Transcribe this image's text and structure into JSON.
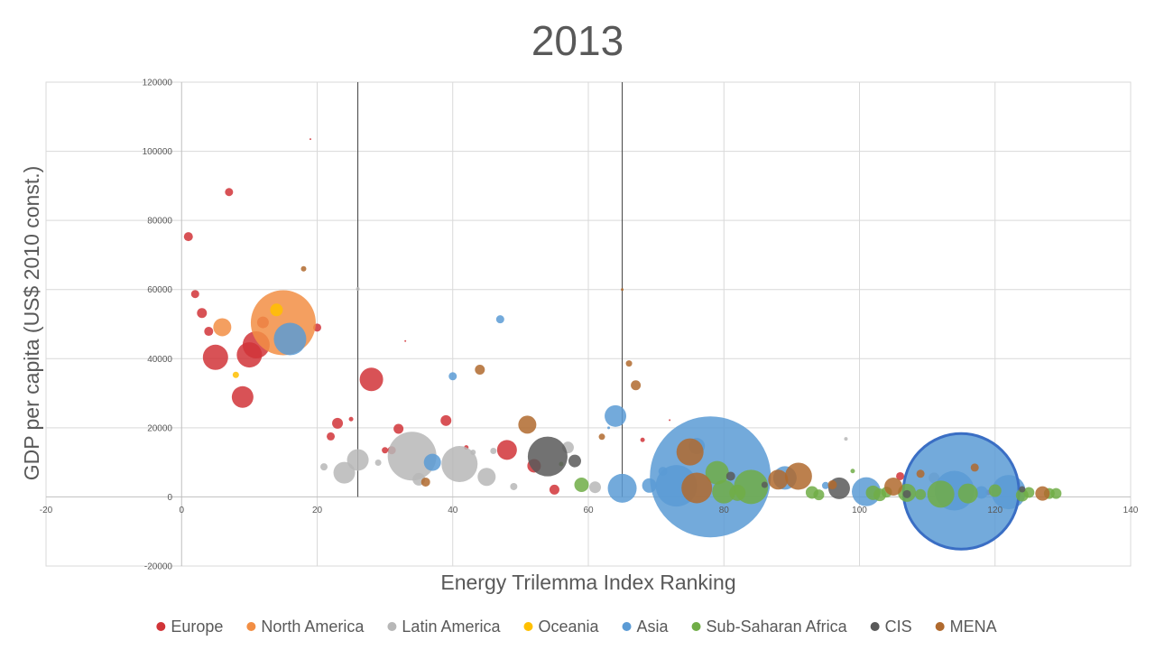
{
  "chart_data": {
    "type": "scatter",
    "bubble": true,
    "title": "2013",
    "xlabel": "Energy Trilemma Index Ranking",
    "ylabel": "GDP per capita (US$ 2010 const.)",
    "xlim": [
      -20,
      140
    ],
    "ylim": [
      -20000,
      120000
    ],
    "x_ticks": [
      "-20",
      "0",
      "20",
      "40",
      "60",
      "80",
      "100",
      "120",
      "140"
    ],
    "y_ticks": [
      "-20000",
      "0",
      "20000",
      "40000",
      "60000",
      "80000",
      "100000",
      "120000"
    ],
    "grid": true,
    "legend_position": "bottom",
    "reference_lines_x": [
      26,
      65
    ],
    "series": [
      {
        "name": "Europe",
        "color": "#d13438",
        "points": [
          {
            "x": 1,
            "y": 75300,
            "r": 5
          },
          {
            "x": 2,
            "y": 58700,
            "r": 4.5
          },
          {
            "x": 3,
            "y": 53200,
            "r": 5.5
          },
          {
            "x": 4,
            "y": 47900,
            "r": 5
          },
          {
            "x": 5,
            "y": 40400,
            "r": 14
          },
          {
            "x": 7,
            "y": 88200,
            "r": 4.5
          },
          {
            "x": 9,
            "y": 28900,
            "r": 12
          },
          {
            "x": 10,
            "y": 41100,
            "r": 14
          },
          {
            "x": 11,
            "y": 44000,
            "r": 15
          },
          {
            "x": 12,
            "y": 50500,
            "r": 6.5
          },
          {
            "x": 19,
            "y": 103500,
            "r": 1
          },
          {
            "x": 20,
            "y": 49000,
            "r": 4.5
          },
          {
            "x": 22,
            "y": 17500,
            "r": 4.5
          },
          {
            "x": 23,
            "y": 21300,
            "r": 6
          },
          {
            "x": 25,
            "y": 22500,
            "r": 2.5
          },
          {
            "x": 28,
            "y": 34000,
            "r": 13
          },
          {
            "x": 30,
            "y": 13500,
            "r": 3.5
          },
          {
            "x": 31,
            "y": 13500,
            "r": 4.5
          },
          {
            "x": 32,
            "y": 19700,
            "r": 5.5
          },
          {
            "x": 33,
            "y": 45100,
            "r": 1
          },
          {
            "x": 39,
            "y": 22100,
            "r": 6
          },
          {
            "x": 42,
            "y": 14300,
            "r": 2.5
          },
          {
            "x": 48,
            "y": 13600,
            "r": 11
          },
          {
            "x": 52,
            "y": 9000,
            "r": 7.5
          },
          {
            "x": 55,
            "y": 2100,
            "r": 5.5
          },
          {
            "x": 72,
            "y": 22200,
            "r": 1
          },
          {
            "x": 68,
            "y": 16500,
            "r": 2.5
          },
          {
            "x": 106,
            "y": 6000,
            "r": 4.5
          },
          {
            "x": 119,
            "y": 1300,
            "r": 3
          }
        ]
      },
      {
        "name": "North America",
        "color": "#f28e44",
        "points": [
          {
            "x": 15,
            "y": 50400,
            "r": 36
          },
          {
            "x": 6,
            "y": 49100,
            "r": 10
          }
        ]
      },
      {
        "name": "Latin America",
        "color": "#b7b7b7",
        "points": [
          {
            "x": 21,
            "y": 8700,
            "r": 4
          },
          {
            "x": 24,
            "y": 7000,
            "r": 12
          },
          {
            "x": 26,
            "y": 60200,
            "r": 2
          },
          {
            "x": 26,
            "y": 10700,
            "r": 12
          },
          {
            "x": 29,
            "y": 9900,
            "r": 3.5
          },
          {
            "x": 34,
            "y": 11800,
            "r": 27
          },
          {
            "x": 35,
            "y": 5100,
            "r": 7
          },
          {
            "x": 41,
            "y": 9500,
            "r": 20
          },
          {
            "x": 43,
            "y": 12900,
            "r": 3
          },
          {
            "x": 45,
            "y": 5800,
            "r": 10
          },
          {
            "x": 46,
            "y": 13300,
            "r": 3.5
          },
          {
            "x": 49,
            "y": 3000,
            "r": 4
          },
          {
            "x": 57,
            "y": 14300,
            "r": 6.5
          },
          {
            "x": 61,
            "y": 2800,
            "r": 6.5
          },
          {
            "x": 98,
            "y": 16800,
            "r": 2
          },
          {
            "x": 111,
            "y": 5500,
            "r": 6
          }
        ]
      },
      {
        "name": "Oceania",
        "color": "#ffc000",
        "points": [
          {
            "x": 8,
            "y": 35300,
            "r": 3.5
          },
          {
            "x": 14,
            "y": 54100,
            "r": 7
          }
        ]
      },
      {
        "name": "Asia",
        "color": "#5b9bd5",
        "points": [
          {
            "x": 16,
            "y": 45700,
            "r": 18
          },
          {
            "x": 37,
            "y": 10000,
            "r": 9.5
          },
          {
            "x": 40,
            "y": 34900,
            "r": 4.5
          },
          {
            "x": 47,
            "y": 51400,
            "r": 4.5
          },
          {
            "x": 64,
            "y": 23400,
            "r": 12
          },
          {
            "x": 63,
            "y": 20000,
            "r": 1.5
          },
          {
            "x": 65,
            "y": 2500,
            "r": 16
          },
          {
            "x": 69,
            "y": 3300,
            "r": 8
          },
          {
            "x": 71,
            "y": 7400,
            "r": 5
          },
          {
            "x": 73,
            "y": 3200,
            "r": 23
          },
          {
            "x": 76,
            "y": 14700,
            "r": 9
          },
          {
            "x": 78,
            "y": 5800,
            "r": 67
          },
          {
            "x": 89,
            "y": 5500,
            "r": 13
          },
          {
            "x": 95,
            "y": 3300,
            "r": 4
          },
          {
            "x": 101,
            "y": 1500,
            "r": 16
          },
          {
            "x": 114,
            "y": 1800,
            "r": 22
          },
          {
            "x": 118,
            "y": 1300,
            "r": 7
          },
          {
            "x": 122,
            "y": 1400,
            "r": 19
          }
        ],
        "highlighted_point": {
          "x": 115,
          "y": 1600,
          "r": 64
        }
      },
      {
        "name": "Sub-Saharan Africa",
        "color": "#70ad47",
        "points": [
          {
            "x": 56,
            "y": 9500,
            "r": 2.5
          },
          {
            "x": 59,
            "y": 3500,
            "r": 8
          },
          {
            "x": 79,
            "y": 7000,
            "r": 13
          },
          {
            "x": 80,
            "y": 1500,
            "r": 13
          },
          {
            "x": 82,
            "y": 1200,
            "r": 9
          },
          {
            "x": 84,
            "y": 2900,
            "r": 19
          },
          {
            "x": 93,
            "y": 1300,
            "r": 7
          },
          {
            "x": 94,
            "y": 600,
            "r": 6
          },
          {
            "x": 99,
            "y": 7500,
            "r": 2.5
          },
          {
            "x": 102,
            "y": 1200,
            "r": 8
          },
          {
            "x": 103,
            "y": 600,
            "r": 7
          },
          {
            "x": 104,
            "y": 1400,
            "r": 6
          },
          {
            "x": 107,
            "y": 1200,
            "r": 10
          },
          {
            "x": 109,
            "y": 700,
            "r": 6
          },
          {
            "x": 112,
            "y": 800,
            "r": 15
          },
          {
            "x": 116,
            "y": 1000,
            "r": 11
          },
          {
            "x": 120,
            "y": 1800,
            "r": 7
          },
          {
            "x": 124,
            "y": 500,
            "r": 7
          },
          {
            "x": 125,
            "y": 1300,
            "r": 6
          },
          {
            "x": 128,
            "y": 1000,
            "r": 6
          },
          {
            "x": 129,
            "y": 1000,
            "r": 6
          }
        ]
      },
      {
        "name": "CIS",
        "color": "#595959",
        "points": [
          {
            "x": 54,
            "y": 11700,
            "r": 22
          },
          {
            "x": 58,
            "y": 10400,
            "r": 7
          },
          {
            "x": 81,
            "y": 6000,
            "r": 5
          },
          {
            "x": 86,
            "y": 3500,
            "r": 3.5
          },
          {
            "x": 97,
            "y": 2500,
            "r": 12
          },
          {
            "x": 107,
            "y": 800,
            "r": 4.5
          },
          {
            "x": 124,
            "y": 2200,
            "r": 3.5
          }
        ]
      },
      {
        "name": "MENA",
        "color": "#b06a2e",
        "points": [
          {
            "x": 18,
            "y": 66000,
            "r": 3
          },
          {
            "x": 36,
            "y": 4300,
            "r": 5
          },
          {
            "x": 44,
            "y": 36800,
            "r": 5.5
          },
          {
            "x": 51,
            "y": 20900,
            "r": 10
          },
          {
            "x": 62,
            "y": 17400,
            "r": 3.5
          },
          {
            "x": 65,
            "y": 60000,
            "r": 1.5
          },
          {
            "x": 66,
            "y": 38600,
            "r": 3.5
          },
          {
            "x": 67,
            "y": 32300,
            "r": 5.5
          },
          {
            "x": 75,
            "y": 13000,
            "r": 15
          },
          {
            "x": 76,
            "y": 2600,
            "r": 17
          },
          {
            "x": 88,
            "y": 5000,
            "r": 11
          },
          {
            "x": 91,
            "y": 6000,
            "r": 15
          },
          {
            "x": 96,
            "y": 3500,
            "r": 5
          },
          {
            "x": 105,
            "y": 3000,
            "r": 10
          },
          {
            "x": 109,
            "y": 6700,
            "r": 4.5
          },
          {
            "x": 117,
            "y": 8500,
            "r": 4.5
          },
          {
            "x": 127,
            "y": 1000,
            "r": 8
          }
        ]
      }
    ]
  }
}
